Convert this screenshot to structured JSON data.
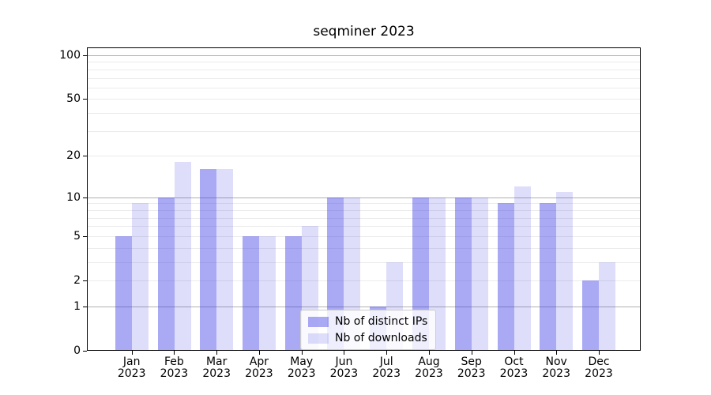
{
  "chart_data": {
    "type": "bar",
    "title": "seqminer 2023",
    "categories": [
      "Jan 2023",
      "Feb 2023",
      "Mar 2023",
      "Apr 2023",
      "May 2023",
      "Jun 2023",
      "Jul 2023",
      "Aug 2023",
      "Sep 2023",
      "Oct 2023",
      "Nov 2023",
      "Dec 2023"
    ],
    "series": [
      {
        "key": "ips",
        "name": "Nb of distinct IPs",
        "color": "rgba(58,58,230,0.43)",
        "values": [
          5,
          10,
          16,
          5,
          5,
          10,
          1,
          10,
          10,
          9,
          9,
          2
        ]
      },
      {
        "key": "downloads",
        "name": "Nb of downloads",
        "color": "rgba(58,58,230,0.17)",
        "values": [
          9,
          18,
          16,
          5,
          6,
          10,
          3,
          10,
          10,
          12,
          11,
          3
        ]
      }
    ],
    "yscale": "log1p",
    "ylim": [
      0,
      113
    ],
    "y_ticks": [
      100,
      50,
      20,
      10,
      5,
      2,
      1,
      0
    ],
    "y_major_gridlines": [
      1,
      10,
      100
    ],
    "y_minor_gridlines": [
      2,
      3,
      4,
      5,
      6,
      7,
      8,
      9,
      20,
      30,
      40,
      50,
      60,
      70,
      80,
      90
    ],
    "grid": "on",
    "legend_position": "lower center",
    "xlabel": "",
    "ylabel": ""
  }
}
